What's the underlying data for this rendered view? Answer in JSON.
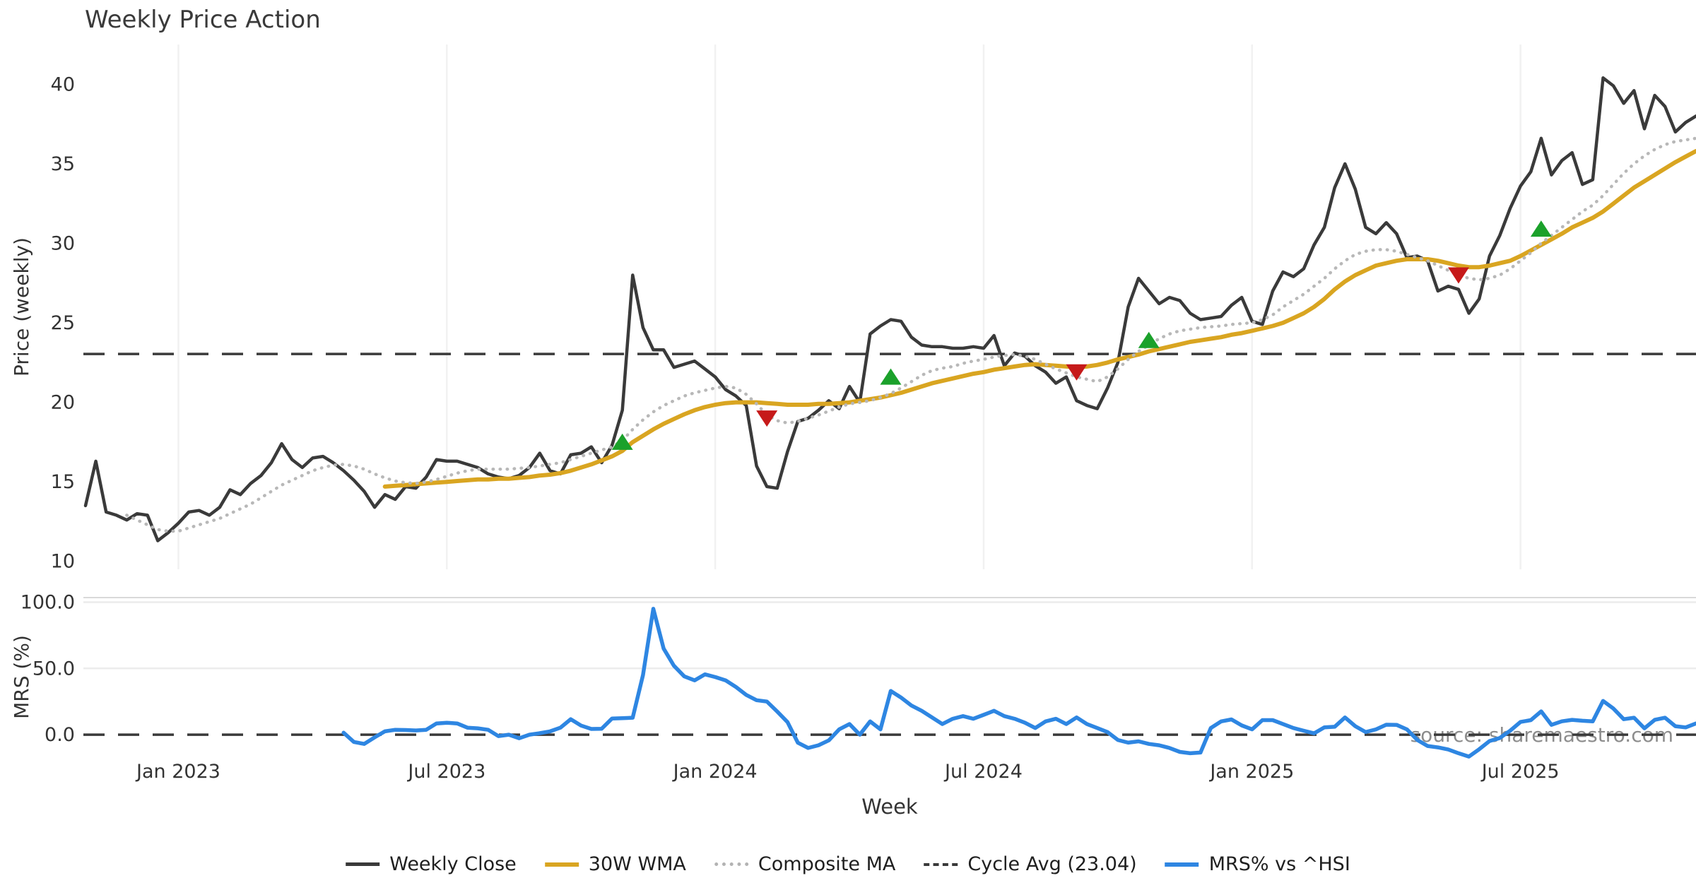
{
  "title": "Weekly Price Action",
  "watermark": "source: sharemaestro.com",
  "colors": {
    "close": "#3a3a3a",
    "wma": "#d9a521",
    "composite": "#b8b8b8",
    "cycle_dash": "#3a3a3a",
    "mrs": "#2e86e2",
    "buy": "#1ba12b",
    "sell": "#c61a1a",
    "grid_vertical": "#f1f1f1",
    "grid_horizontal": "#ececec",
    "panel_edge": "#d9d9d9",
    "tick_text": "#333333",
    "watermark_text": "#808080"
  },
  "chart_data": {
    "type": "line",
    "title": "Weekly Price Action",
    "xlabel": "Week",
    "x_unit": "week_index_from_2022-11",
    "n_weeks": 157,
    "x_tick_weeks": [
      9,
      35,
      61,
      87,
      113,
      139
    ],
    "x_tick_labels": [
      "Jan 2023",
      "Jul 2023",
      "Jan 2024",
      "Jul 2024",
      "Jan 2025",
      "Jul 2025"
    ],
    "legend_position": "bottom-center",
    "panels": [
      {
        "ylabel": "Price (weekly)",
        "ylim": [
          9.5,
          42.5
        ],
        "yticks": [
          10,
          15,
          20,
          25,
          30,
          35,
          40
        ],
        "ytick_labels": [
          "10",
          "15",
          "20",
          "25",
          "30",
          "35",
          "40"
        ],
        "grid": "vertical",
        "hline": {
          "name": "Cycle Avg",
          "value": 23.04,
          "style": "dashed"
        },
        "series": [
          {
            "name": "Weekly Close",
            "style": "solid-dark",
            "values": [
              13.5,
              16.3,
              13.1,
              12.9,
              12.6,
              13.0,
              12.9,
              11.3,
              11.8,
              12.4,
              13.1,
              13.2,
              12.9,
              13.4,
              14.5,
              14.2,
              14.9,
              15.4,
              16.2,
              17.4,
              16.4,
              15.9,
              16.5,
              16.6,
              16.2,
              15.7,
              15.1,
              14.4,
              13.4,
              14.2,
              13.9,
              14.7,
              14.6,
              15.3,
              16.4,
              16.3,
              16.3,
              16.1,
              15.9,
              15.5,
              15.3,
              15.2,
              15.4,
              15.9,
              16.8,
              15.7,
              15.5,
              16.7,
              16.8,
              17.2,
              16.2,
              17.3,
              19.5,
              28.0,
              24.7,
              23.3,
              23.3,
              22.2,
              22.4,
              22.6,
              22.1,
              21.6,
              20.8,
              20.4,
              19.8,
              16.0,
              14.7,
              14.6,
              16.9,
              18.8,
              19.0,
              19.5,
              20.1,
              19.6,
              21.0,
              20.0,
              24.3,
              24.8,
              25.2,
              25.1,
              24.1,
              23.6,
              23.5,
              23.5,
              23.4,
              23.4,
              23.5,
              23.4,
              24.2,
              22.3,
              23.1,
              22.9,
              22.3,
              21.9,
              21.2,
              21.6,
              20.1,
              19.8,
              19.6,
              20.9,
              22.5,
              26.0,
              27.8,
              27.0,
              26.2,
              26.6,
              26.4,
              25.6,
              25.2,
              25.3,
              25.4,
              26.1,
              26.6,
              25.1,
              24.9,
              27.0,
              28.2,
              27.9,
              28.4,
              29.9,
              31.0,
              33.5,
              35.0,
              33.4,
              31.0,
              30.6,
              31.3,
              30.6,
              29.1,
              29.2,
              28.9,
              27.0,
              27.3,
              27.1,
              25.6,
              26.5,
              29.2,
              30.5,
              32.2,
              33.6,
              34.5,
              36.6,
              34.3,
              35.2,
              35.7,
              33.7,
              34.0,
              40.4,
              39.9,
              38.8,
              39.6,
              37.2,
              39.3,
              38.6,
              37.0,
              37.6,
              38.0
            ]
          },
          {
            "name": "30W WMA",
            "style": "solid-gold",
            "values": [
              null,
              null,
              null,
              null,
              null,
              null,
              null,
              null,
              null,
              null,
              null,
              null,
              null,
              null,
              null,
              null,
              null,
              null,
              null,
              null,
              null,
              null,
              null,
              null,
              null,
              null,
              null,
              null,
              null,
              14.7,
              14.75,
              14.8,
              14.85,
              14.9,
              14.95,
              15.0,
              15.05,
              15.1,
              15.15,
              15.15,
              15.2,
              15.2,
              15.25,
              15.3,
              15.4,
              15.45,
              15.55,
              15.7,
              15.9,
              16.1,
              16.35,
              16.6,
              16.95,
              17.5,
              17.9,
              18.3,
              18.65,
              18.95,
              19.25,
              19.5,
              19.7,
              19.85,
              19.95,
              20.0,
              20.0,
              20.0,
              19.95,
              19.9,
              19.85,
              19.85,
              19.85,
              19.9,
              19.9,
              19.95,
              20.0,
              20.1,
              20.2,
              20.3,
              20.45,
              20.6,
              20.8,
              21.0,
              21.2,
              21.35,
              21.5,
              21.65,
              21.8,
              21.9,
              22.05,
              22.15,
              22.25,
              22.35,
              22.4,
              22.35,
              22.3,
              22.25,
              22.2,
              22.25,
              22.35,
              22.5,
              22.7,
              22.85,
              23.0,
              23.2,
              23.35,
              23.5,
              23.65,
              23.8,
              23.9,
              24.0,
              24.1,
              24.25,
              24.35,
              24.5,
              24.65,
              24.8,
              25.0,
              25.3,
              25.6,
              26.0,
              26.5,
              27.1,
              27.6,
              28.0,
              28.3,
              28.6,
              28.75,
              28.9,
              29.0,
              29.0,
              29.0,
              28.9,
              28.75,
              28.6,
              28.5,
              28.5,
              28.6,
              28.75,
              28.9,
              29.2,
              29.55,
              29.9,
              30.25,
              30.6,
              31.0,
              31.3,
              31.6,
              32.0,
              32.5,
              33.0,
              33.5,
              33.9,
              34.3,
              34.7,
              35.1,
              35.45,
              35.8
            ]
          },
          {
            "name": "Composite MA",
            "style": "dotted-gray",
            "values": [
              null,
              null,
              null,
              null,
              12.9,
              12.6,
              12.3,
              12.0,
              11.9,
              11.9,
              12.1,
              12.3,
              12.5,
              12.7,
              13.0,
              13.3,
              13.6,
              14.0,
              14.4,
              14.8,
              15.1,
              15.4,
              15.7,
              15.9,
              16.05,
              16.1,
              16.0,
              15.8,
              15.5,
              15.25,
              15.05,
              14.95,
              14.9,
              15.0,
              15.15,
              15.35,
              15.55,
              15.7,
              15.8,
              15.8,
              15.8,
              15.8,
              15.85,
              15.9,
              16.0,
              16.1,
              16.2,
              16.4,
              16.6,
              16.8,
              17.0,
              17.2,
              17.6,
              18.3,
              18.9,
              19.4,
              19.8,
              20.1,
              20.4,
              20.6,
              20.75,
              20.9,
              21.0,
              20.9,
              20.5,
              19.9,
              19.2,
              18.85,
              18.7,
              18.8,
              19.0,
              19.2,
              19.45,
              19.7,
              19.9,
              20.0,
              20.1,
              20.3,
              20.55,
              20.9,
              21.3,
              21.7,
              22.0,
              22.15,
              22.25,
              22.45,
              22.6,
              22.7,
              22.85,
              22.95,
              23.0,
              22.9,
              22.7,
              22.4,
              22.1,
              21.85,
              21.6,
              21.45,
              21.3,
              21.6,
              22.1,
              22.7,
              23.2,
              23.6,
              24.0,
              24.3,
              24.5,
              24.6,
              24.7,
              24.75,
              24.8,
              24.9,
              24.95,
              25.0,
              25.2,
              25.5,
              26.0,
              26.4,
              26.8,
              27.3,
              27.8,
              28.4,
              28.9,
              29.3,
              29.5,
              29.6,
              29.6,
              29.5,
              29.3,
              29.1,
              28.9,
              28.6,
              28.3,
              28.0,
              27.8,
              27.7,
              27.8,
              28.0,
              28.4,
              28.9,
              29.4,
              30.0,
              30.5,
              31.0,
              31.5,
              32.0,
              32.4,
              33.0,
              33.7,
              34.4,
              35.0,
              35.5,
              35.9,
              36.2,
              36.4,
              36.5,
              36.6
            ]
          }
        ],
        "markers": {
          "buy": [
            {
              "week": 52,
              "value": 17.5
            },
            {
              "week": 78,
              "value": 21.6
            },
            {
              "week": 103,
              "value": 23.9
            },
            {
              "week": 141,
              "value": 30.9
            }
          ],
          "sell": [
            {
              "week": 66,
              "value": 19.0
            },
            {
              "week": 96,
              "value": 21.9
            },
            {
              "week": 133,
              "value": 28.0
            }
          ]
        }
      },
      {
        "ylabel": "MRS (%)",
        "ylim": [
          -17,
          104
        ],
        "yticks": [
          0,
          50,
          100
        ],
        "ytick_labels": [
          "0.0",
          "50.0",
          "100.0"
        ],
        "grid": "horizontal",
        "hline": {
          "name": "Zero line",
          "value": 0,
          "style": "dashed"
        },
        "series": [
          {
            "name": "MRS% vs ^HSI",
            "style": "solid-blue",
            "values": [
              null,
              null,
              null,
              null,
              null,
              null,
              null,
              null,
              null,
              null,
              null,
              null,
              null,
              null,
              null,
              null,
              null,
              null,
              null,
              null,
              null,
              null,
              null,
              null,
              null,
              1.5,
              -5.5,
              -7.0,
              -2.0,
              2.5,
              3.7,
              3.5,
              3.2,
              3.7,
              8.5,
              9.0,
              8.5,
              5.3,
              4.8,
              3.7,
              -1.1,
              0.0,
              -2.7,
              0.0,
              1.1,
              2.5,
              5.3,
              11.7,
              6.9,
              4.3,
              4.5,
              12.2,
              12.4,
              12.8,
              45.0,
              95.0,
              65.0,
              52.0,
              44.0,
              41.0,
              45.5,
              43.5,
              41.0,
              36.0,
              30.0,
              26.0,
              25.0,
              17.5,
              9.5,
              -6.0,
              -10.0,
              -8.0,
              -4.3,
              4.0,
              8.0,
              0.0,
              10.0,
              4.0,
              33.0,
              28.0,
              22.0,
              18.0,
              13.0,
              8.0,
              12.0,
              14.0,
              12.0,
              15.0,
              18.0,
              14.0,
              12.0,
              9.0,
              5.0,
              10.0,
              12.0,
              8.0,
              13.0,
              8.0,
              5.0,
              2.0,
              -4.0,
              -6.0,
              -5.0,
              -7.0,
              -8.0,
              -10.0,
              -13.0,
              -14.0,
              -13.5,
              5.0,
              10.0,
              11.5,
              7.0,
              4.0,
              11.0,
              11.0,
              8.0,
              5.0,
              3.0,
              1.0,
              5.5,
              6.0,
              13.0,
              6.4,
              2.0,
              4.0,
              7.5,
              7.4,
              4.0,
              -4.0,
              -8.5,
              -9.6,
              -11.2,
              -14.0,
              -16.5,
              -11.0,
              -4.8,
              -2.5,
              3.0,
              9.6,
              11.0,
              17.6,
              7.4,
              10.1,
              11.2,
              10.5,
              10.1,
              25.5,
              19.7,
              11.7,
              12.8,
              4.8,
              11.2,
              12.8,
              6.4,
              5.5,
              8.5
            ]
          }
        ]
      }
    ]
  },
  "legend": {
    "items": [
      {
        "label": "Weekly Close",
        "kind": "close"
      },
      {
        "label": "30W WMA",
        "kind": "wma"
      },
      {
        "label": "Composite MA",
        "kind": "comp"
      },
      {
        "label": "Cycle Avg (23.04)",
        "kind": "cycle"
      },
      {
        "label": "MRS% vs ^HSI",
        "kind": "mrs"
      }
    ]
  }
}
